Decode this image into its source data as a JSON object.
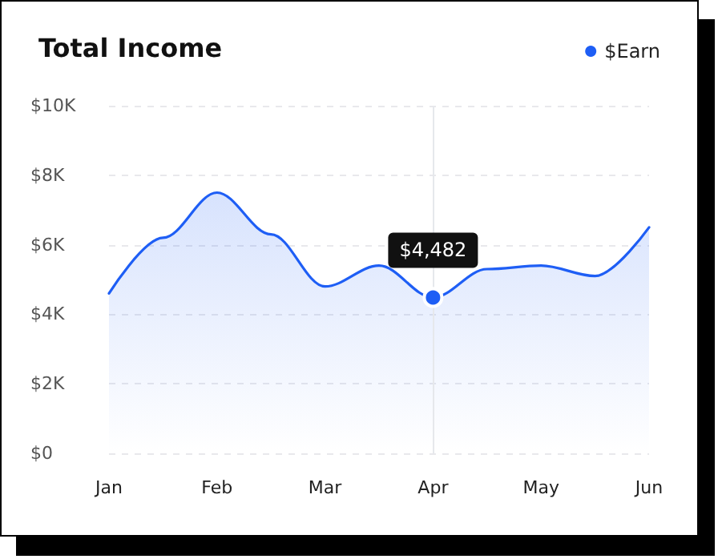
{
  "chart_data": {
    "type": "area",
    "title": "Total Income",
    "categories": [
      "Jan",
      null,
      "Feb",
      null,
      "Mar",
      null,
      "Apr",
      null,
      "May",
      null,
      "Jun"
    ],
    "series": [
      {
        "name": "$Earn",
        "color": "#1e5ef5",
        "values": [
          4600,
          6200,
          7500,
          6300,
          4800,
          5400,
          4482,
          5300,
          5400,
          5100,
          6500
        ]
      }
    ],
    "ylim": [
      0,
      10000
    ],
    "yticks": [
      {
        "value": 0,
        "label": "$0"
      },
      {
        "value": 2000,
        "label": "$2K"
      },
      {
        "value": 4000,
        "label": "$4K"
      },
      {
        "value": 6000,
        "label": "$6K"
      },
      {
        "value": 8000,
        "label": "$8K"
      },
      {
        "value": 10000,
        "label": "$10K"
      }
    ],
    "grid": "y",
    "legend": "top right",
    "line_style": "solid",
    "ref_lines": [
      {
        "axis": "x",
        "value": "Apr",
        "label": null,
        "color": "#e6e8ec"
      }
    ],
    "annotations": [
      {
        "text": "$4,482",
        "x": "Apr",
        "y": 4482
      }
    ]
  }
}
